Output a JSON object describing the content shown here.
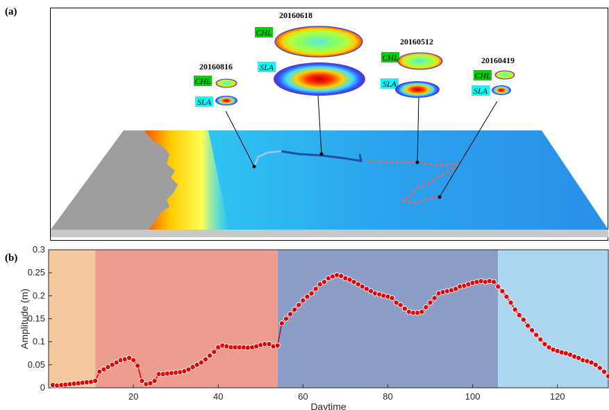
{
  "panel_a": {
    "label": "(a)",
    "eddies": [
      {
        "date": "20160618",
        "chl_label": "CHL",
        "sla_label": "SLA"
      },
      {
        "date": "20160512",
        "chl_label": "CHL",
        "sla_label": "SLA"
      },
      {
        "date": "20160816",
        "chl_label": "CHL",
        "sla_label": "SLA"
      },
      {
        "date": "20160419",
        "chl_label": "CHL",
        "sla_label": "SLA"
      }
    ],
    "colors": {
      "chl_tag": "#00d400",
      "sla_tag": "#00ffff",
      "land": "#9e9e9e",
      "sea": "#2aa8f0"
    }
  },
  "panel_b": {
    "label": "(b)",
    "colors": {
      "line": "#d40000",
      "marker": "#e60000",
      "phase_1": "#f4c9a0",
      "phase_2": "#ef9c90",
      "phase_3": "#8c9ec6",
      "phase_4": "#acd6ef"
    },
    "chart_data": {
      "type": "line",
      "xlabel": "Daytime",
      "ylabel": "Amplitude (m)",
      "xlim": [
        0,
        132
      ],
      "ylim": [
        0,
        0.3
      ],
      "x_ticks": [
        "20",
        "40",
        "60",
        "80",
        "100",
        "120"
      ],
      "y_ticks": [
        "0",
        "0.05",
        "0.1",
        "0.15",
        "0.2",
        "0.25",
        "0.3"
      ],
      "phases": [
        [
          0,
          11
        ],
        [
          11,
          54
        ],
        [
          54,
          106
        ],
        [
          106,
          132
        ]
      ],
      "series": [
        {
          "x": [
            1,
            2,
            3,
            4,
            5,
            6,
            7,
            8,
            9,
            10,
            11,
            12,
            13,
            14,
            15,
            16,
            17,
            18,
            19,
            20,
            21,
            22,
            23,
            24,
            25,
            26,
            27,
            28,
            29,
            30,
            31,
            32,
            33,
            34,
            35,
            36,
            37,
            38,
            39,
            40,
            41,
            42,
            43,
            44,
            45,
            46,
            47,
            48,
            49,
            50,
            51,
            52,
            53,
            54,
            55,
            56,
            57,
            58,
            59,
            60,
            61,
            62,
            63,
            64,
            65,
            66,
            67,
            68,
            69,
            70,
            71,
            72,
            73,
            74,
            75,
            76,
            77,
            78,
            79,
            80,
            81,
            82,
            83,
            84,
            85,
            86,
            87,
            88,
            89,
            90,
            91,
            92,
            93,
            94,
            95,
            96,
            97,
            98,
            99,
            100,
            101,
            102,
            103,
            104,
            105,
            106,
            107,
            108,
            109,
            110,
            111,
            112,
            113,
            114,
            115,
            116,
            117,
            118,
            119,
            120,
            121,
            122,
            123,
            124,
            125,
            126,
            127,
            128,
            129,
            130,
            131,
            132
          ],
          "y": [
            0.006,
            0.005,
            0.006,
            0.007,
            0.008,
            0.009,
            0.01,
            0.011,
            0.012,
            0.013,
            0.015,
            0.035,
            0.04,
            0.045,
            0.05,
            0.055,
            0.06,
            0.062,
            0.065,
            0.06,
            0.048,
            0.015,
            0.008,
            0.01,
            0.015,
            0.03,
            0.03,
            0.031,
            0.032,
            0.033,
            0.034,
            0.036,
            0.04,
            0.045,
            0.05,
            0.055,
            0.062,
            0.07,
            0.078,
            0.088,
            0.092,
            0.09,
            0.088,
            0.088,
            0.088,
            0.088,
            0.087,
            0.088,
            0.09,
            0.093,
            0.095,
            0.095,
            0.09,
            0.092,
            0.14,
            0.15,
            0.16,
            0.17,
            0.18,
            0.19,
            0.198,
            0.205,
            0.215,
            0.225,
            0.23,
            0.238,
            0.242,
            0.245,
            0.243,
            0.238,
            0.235,
            0.23,
            0.225,
            0.22,
            0.215,
            0.21,
            0.205,
            0.203,
            0.2,
            0.198,
            0.195,
            0.185,
            0.18,
            0.172,
            0.165,
            0.163,
            0.163,
            0.165,
            0.175,
            0.185,
            0.195,
            0.205,
            0.208,
            0.21,
            0.212,
            0.215,
            0.22,
            0.222,
            0.225,
            0.228,
            0.23,
            0.232,
            0.23,
            0.232,
            0.23,
            0.22,
            0.21,
            0.198,
            0.185,
            0.17,
            0.158,
            0.148,
            0.135,
            0.125,
            0.115,
            0.105,
            0.095,
            0.088,
            0.083,
            0.08,
            0.077,
            0.075,
            0.072,
            0.068,
            0.065,
            0.06,
            0.058,
            0.055,
            0.05,
            0.043,
            0.035,
            0.025
          ]
        }
      ]
    }
  }
}
